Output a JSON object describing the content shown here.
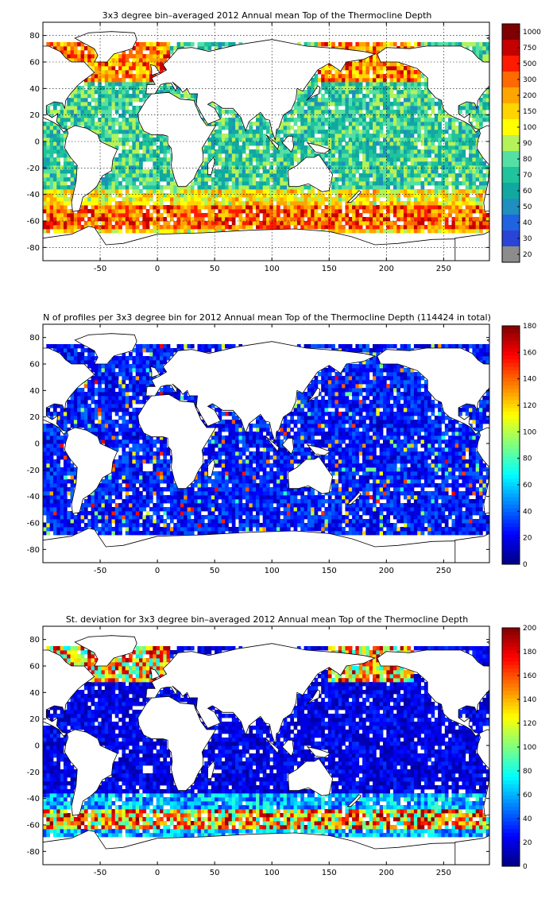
{
  "chart_data": [
    {
      "type": "heatmap",
      "title": "3x3 degree bin–averaged 2012 Annual mean Top of the Thermocline Depth",
      "x_ticks": [
        -50,
        0,
        50,
        100,
        150,
        200,
        250
      ],
      "y_ticks": [
        80,
        60,
        40,
        20,
        0,
        -20,
        -40,
        -60,
        -80
      ],
      "xlim": [
        -100,
        290
      ],
      "ylim": [
        -90,
        90
      ],
      "bin_size_deg": 3,
      "grid": true,
      "colorbar": {
        "kind": "discrete",
        "labels": [
          "1000",
          "750",
          "500",
          "300",
          "200",
          "150",
          "100",
          "90",
          "80",
          "70",
          "60",
          "50",
          "40",
          "30",
          "20"
        ],
        "colors": [
          "#7f0000",
          "#c40000",
          "#ff1a00",
          "#ff6a00",
          "#ffa500",
          "#ffd400",
          "#ffff00",
          "#b4f25a",
          "#54e0a4",
          "#1fc39c",
          "#10a8a0",
          "#1e8fbf",
          "#1f63e0",
          "#2a44d8",
          "#8c8c8c"
        ]
      }
    },
    {
      "type": "heatmap",
      "title": "N of profiles per 3x3 degree bin for 2012 Annual mean Top of the Thermocline Depth  (114424 in total)",
      "x_ticks": [
        -50,
        0,
        50,
        100,
        150,
        200,
        250
      ],
      "y_ticks": [
        80,
        60,
        40,
        20,
        0,
        -20,
        -40,
        -60,
        -80
      ],
      "xlim": [
        -100,
        290
      ],
      "ylim": [
        -90,
        90
      ],
      "bin_size_deg": 3,
      "grid": false,
      "total_profiles": 114424,
      "colorbar": {
        "kind": "continuous",
        "min": 0,
        "max": 180,
        "labels": [
          "180",
          "160",
          "140",
          "120",
          "100",
          "80",
          "60",
          "40",
          "20",
          "0"
        ]
      }
    },
    {
      "type": "heatmap",
      "title": "St. deviation for 3x3 degree bin–averaged 2012 Annual mean Top of the Thermocline Depth",
      "x_ticks": [
        -50,
        0,
        50,
        100,
        150,
        200,
        250
      ],
      "y_ticks": [
        80,
        60,
        40,
        20,
        0,
        -20,
        -40,
        -60,
        -80
      ],
      "xlim": [
        -100,
        290
      ],
      "ylim": [
        -90,
        90
      ],
      "bin_size_deg": 3,
      "grid": false,
      "colorbar": {
        "kind": "continuous",
        "min": 0,
        "max": 200,
        "labels": [
          "200",
          "180",
          "160",
          "140",
          "120",
          "100",
          "80",
          "60",
          "40",
          "20",
          "0"
        ]
      }
    }
  ]
}
